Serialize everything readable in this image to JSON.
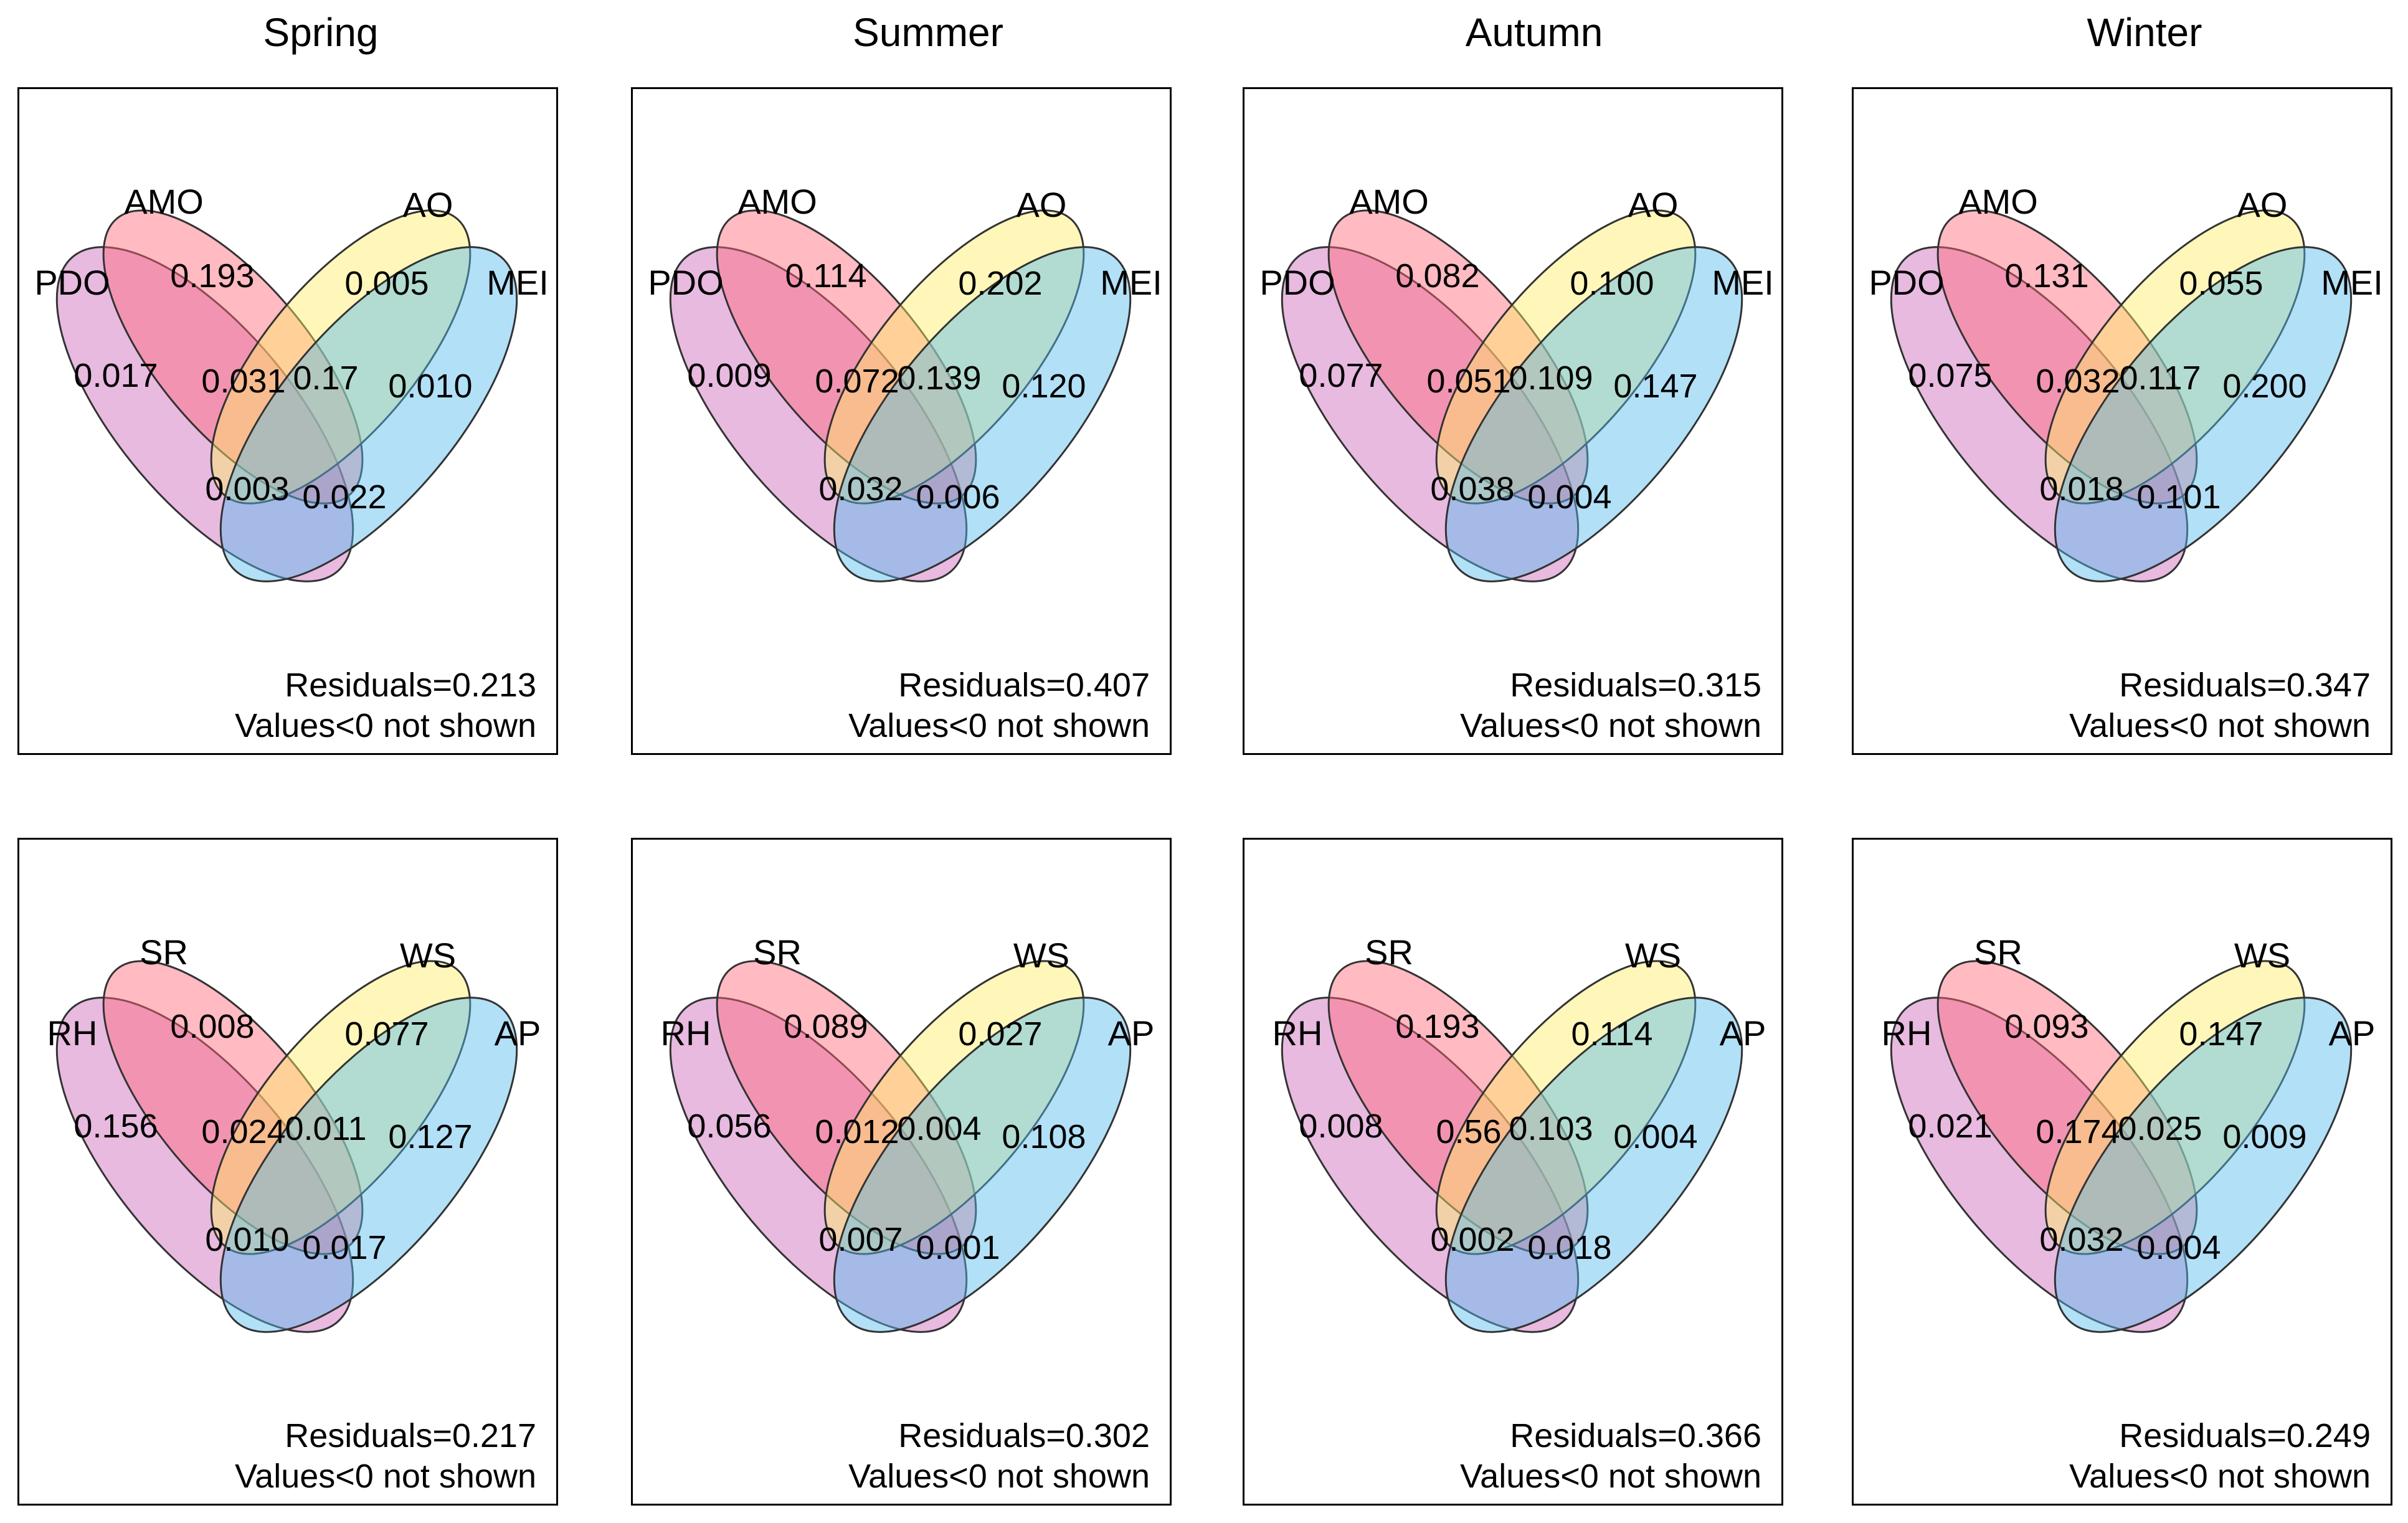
{
  "seasons": [
    "Spring",
    "Summer",
    "Autumn",
    "Winter"
  ],
  "footer_note": "Values<0 not shown",
  "rows": [
    {
      "sets": [
        "PDO",
        "AMO",
        "AO",
        "MEI"
      ],
      "panels": [
        {
          "season": "Spring",
          "values": [
            "0.193",
            "0.005",
            "0.017",
            "0.031",
            "0.17",
            "0.010",
            "0.003",
            "0.022"
          ],
          "residuals": "Residuals=0.213"
        },
        {
          "season": "Summer",
          "values": [
            "0.114",
            "0.202",
            "0.009",
            "0.072",
            "0.139",
            "0.120",
            "0.032",
            "0.006"
          ],
          "residuals": "Residuals=0.407"
        },
        {
          "season": "Autumn",
          "values": [
            "0.082",
            "0.100",
            "0.077",
            "0.051",
            "0.109",
            "0.147",
            "0.038",
            "0.004"
          ],
          "residuals": "Residuals=0.315"
        },
        {
          "season": "Winter",
          "values": [
            "0.131",
            "0.055",
            "0.075",
            "0.032",
            "0.117",
            "0.200",
            "0.018",
            "0.101"
          ],
          "residuals": "Residuals=0.347"
        }
      ]
    },
    {
      "sets": [
        "RH",
        "SR",
        "WS",
        "AP"
      ],
      "panels": [
        {
          "season": "Spring",
          "values": [
            "0.008",
            "0.077",
            "0.156",
            "0.024",
            "0.011",
            "0.127",
            "0.010",
            "0.017"
          ],
          "residuals": "Residuals=0.217"
        },
        {
          "season": "Summer",
          "values": [
            "0.089",
            "0.027",
            "0.056",
            "0.012",
            "0.004",
            "0.108",
            "0.007",
            "0.001"
          ],
          "residuals": "Residuals=0.302"
        },
        {
          "season": "Autumn",
          "values": [
            "0.193",
            "0.114",
            "0.008",
            "0.56",
            "0.103",
            "0.004",
            "0.002",
            "0.018"
          ],
          "residuals": "Residuals=0.366"
        },
        {
          "season": "Winter",
          "values": [
            "0.093",
            "0.147",
            "0.021",
            "0.174",
            "0.025",
            "0.009",
            "0.032",
            "0.004"
          ],
          "residuals": "Residuals=0.249"
        }
      ]
    }
  ],
  "set_colors": [
    "#cc66bb",
    "#ff6677",
    "#ffee66",
    "#55bbee"
  ]
}
